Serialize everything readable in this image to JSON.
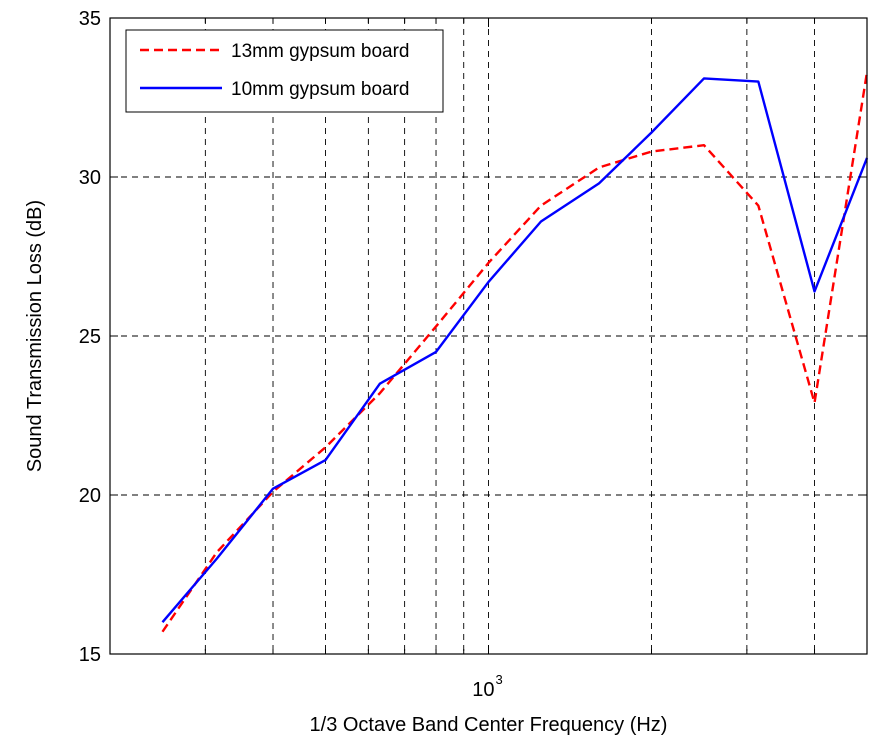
{
  "chart_data": {
    "type": "line",
    "title": "",
    "xlabel": "1/3 Octave Band Center Frequency (Hz)",
    "ylabel": "Sound Transmission Loss (dB)",
    "x_scale": "log",
    "xlim": [
      200,
      5000
    ],
    "ylim": [
      15,
      35
    ],
    "yticks": [
      15,
      20,
      25,
      30,
      35
    ],
    "xtick_label": {
      "base": "10",
      "exponent": "3"
    },
    "grid": true,
    "legend_position": "top-left",
    "x": [
      250,
      315,
      400,
      500,
      630,
      800,
      1000,
      1250,
      1600,
      2000,
      2500,
      3150,
      4000,
      5000
    ],
    "series": [
      {
        "name": "13mm gypsum board",
        "color": "#ff0000",
        "dash": "dashed",
        "values": [
          15.7,
          18.2,
          20.1,
          21.5,
          23.2,
          25.3,
          27.3,
          29.1,
          30.3,
          30.8,
          31.0,
          29.1,
          22.9,
          33.3
        ]
      },
      {
        "name": "10mm gypsum board",
        "color": "#0000ff",
        "dash": "solid",
        "values": [
          16.0,
          18.0,
          20.2,
          21.1,
          23.5,
          24.5,
          26.7,
          28.6,
          29.8,
          31.4,
          33.1,
          33.0,
          26.4,
          30.6
        ]
      }
    ]
  }
}
